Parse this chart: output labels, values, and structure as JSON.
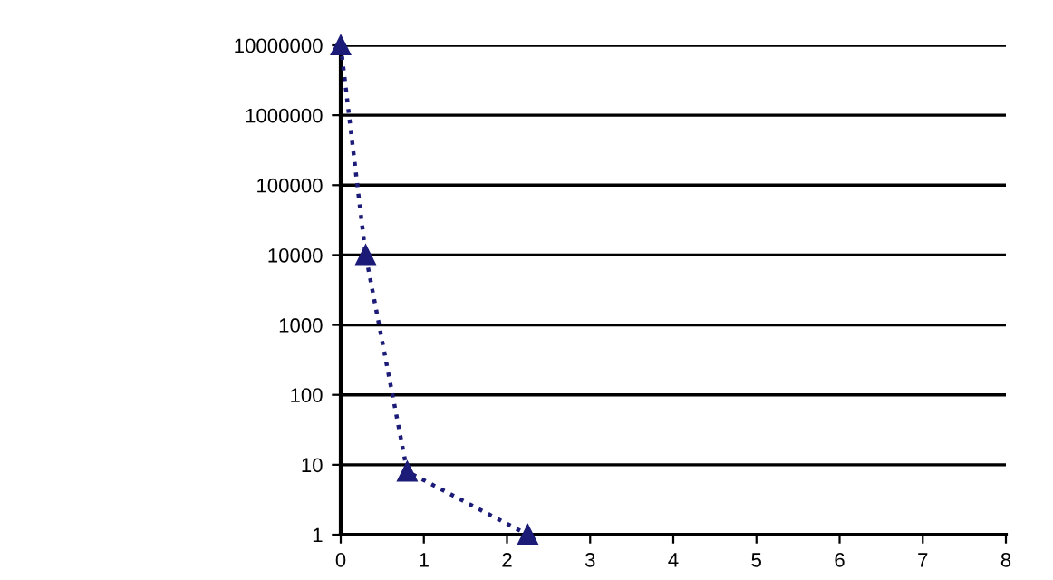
{
  "chart_data": {
    "type": "line",
    "x": [
      0,
      0.3,
      0.8,
      2.25
    ],
    "series": [
      {
        "color": "#1c1c78",
        "values": [
          10000000,
          10000,
          8,
          1
        ]
      }
    ],
    "log": "y",
    "xlim": [
      0,
      8
    ],
    "xticks": [
      0,
      1,
      2,
      3,
      4,
      5,
      6,
      7,
      8
    ],
    "ylim": [
      1,
      10000000
    ],
    "yticks": [
      1,
      10,
      100,
      1000,
      10000,
      100000,
      1000000,
      10000000
    ],
    "grid": "y",
    "marker": "triangle",
    "line_style": "dotted"
  }
}
